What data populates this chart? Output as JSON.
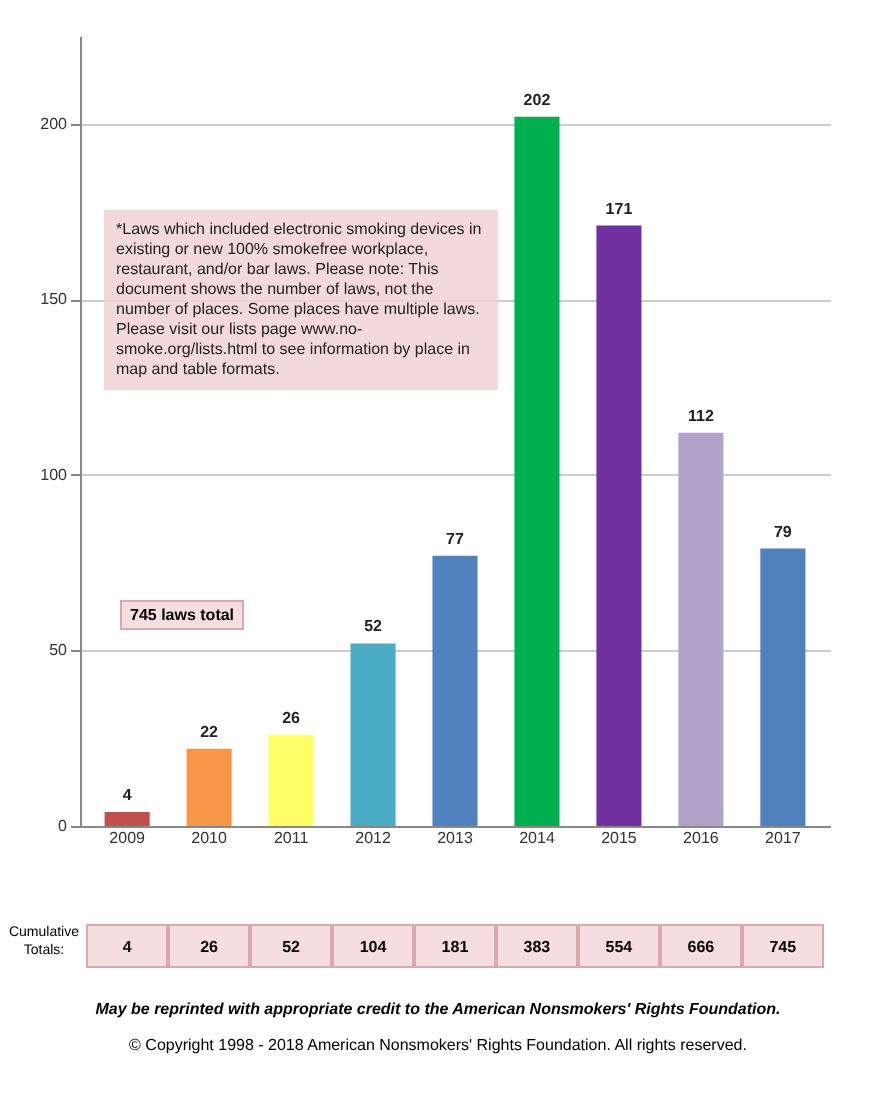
{
  "chart_data": {
    "type": "bar",
    "categories": [
      "2009",
      "2010",
      "2011",
      "2012",
      "2013",
      "2014",
      "2015",
      "2016",
      "2017"
    ],
    "values": [
      4,
      22,
      26,
      52,
      77,
      202,
      171,
      112,
      79
    ],
    "colors": [
      "#c0504d",
      "#f79646",
      "#ffff66",
      "#4bacc6",
      "#4f81bd",
      "#00b050",
      "#7030a0",
      "#b3a2c7",
      "#4f81bd"
    ],
    "data_labels": true,
    "ylim": [
      0,
      225
    ],
    "yticks": [
      0,
      50,
      100,
      150,
      200
    ],
    "grid": "y",
    "annotations": [
      "*Laws which included electronic smoking devices in existing or new 100% smokefree workplace, restaurant, and/or bar laws.  Please note: This document shows the number of laws, not the number of places.  Some places have multiple laws.  Please visit our lists page www.no-smoke.org/lists.html to see information by place in map and table formats.",
      "745 laws total",
      "Cumulative Totals:",
      "4",
      "26",
      "52",
      "104",
      "181",
      "383",
      "554",
      "666",
      "745",
      "May be reprinted with appropriate credit to the American Nonsmokers' Rights Foundation.",
      "© Copyright 1998 - 2018 American Nonsmokers' Rights Foundation.  All rights reserved."
    ]
  }
}
